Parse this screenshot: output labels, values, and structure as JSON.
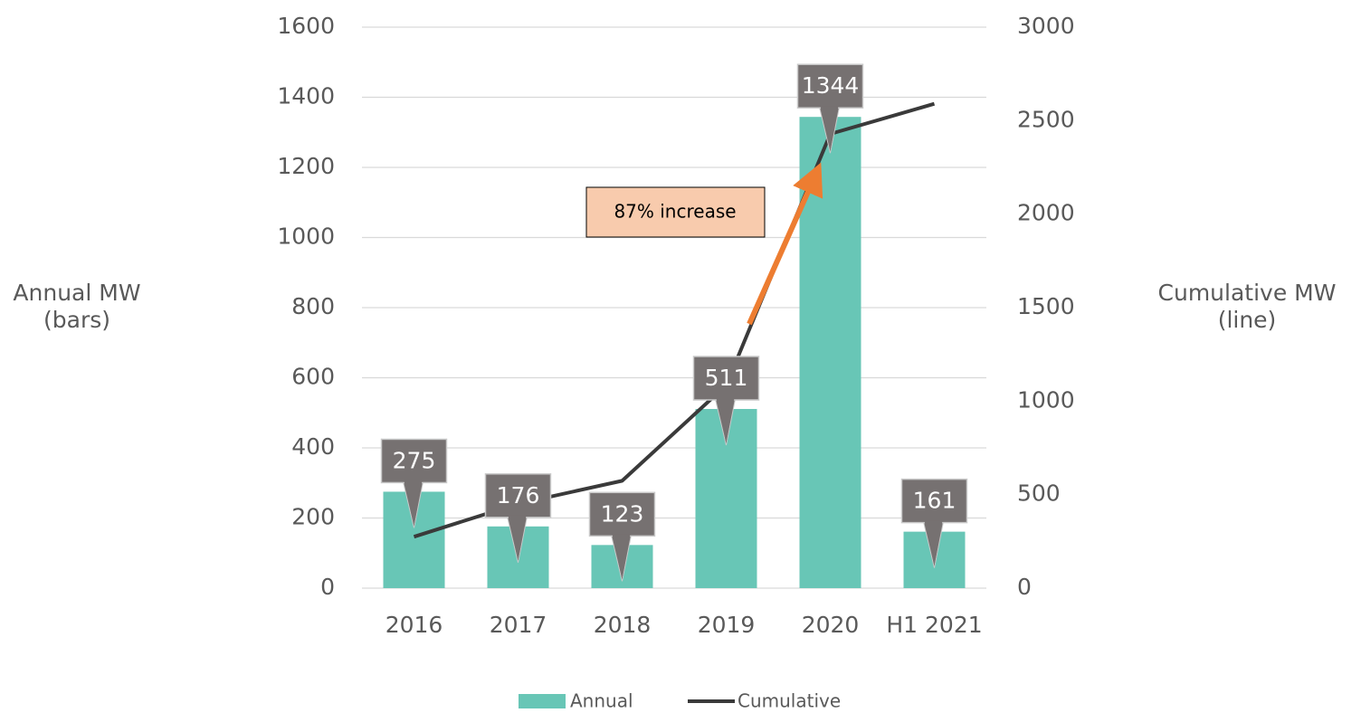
{
  "chart_data": {
    "type": "bar-line",
    "categories": [
      "2016",
      "2017",
      "2018",
      "2019",
      "2020",
      "H1 2021"
    ],
    "series": [
      {
        "name": "Annual",
        "color": "#68c6b6",
        "values": [
          275,
          176,
          123,
          511,
          1344,
          161
        ]
      },
      {
        "name": "Cumulative",
        "color": "#3a3a3a",
        "axis": "y2",
        "values": [
          275,
          451,
          574,
          1085,
          2429,
          2590
        ]
      }
    ],
    "y_label": [
      "Annual MW",
      "(bars)"
    ],
    "y2_label": [
      "Cumulative MW",
      "(line)"
    ],
    "annotation": "87% increase",
    "ylim": [
      0,
      1600
    ],
    "yticks": [
      0,
      200,
      400,
      600,
      800,
      1000,
      1200,
      1400,
      1600
    ],
    "y2lim": [
      0,
      3000
    ],
    "y2ticks": [
      0,
      500,
      1000,
      1500,
      2000,
      2500,
      3000
    ],
    "grid": true,
    "legend": "bottom"
  }
}
